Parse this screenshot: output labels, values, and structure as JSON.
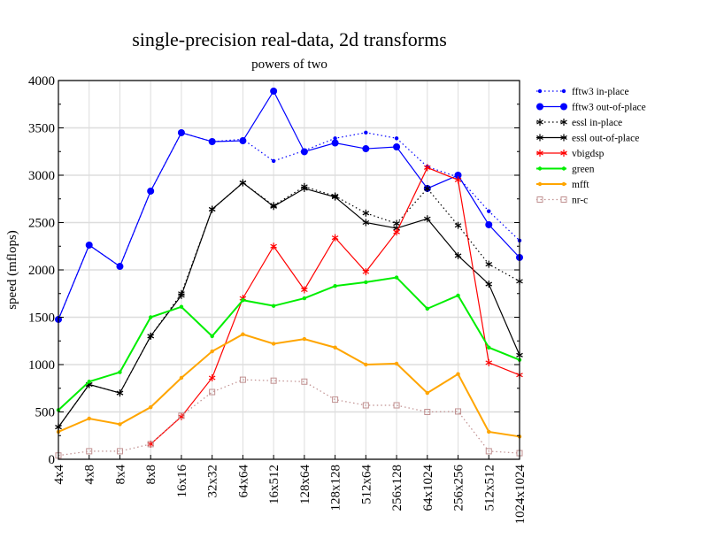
{
  "chart_data": {
    "type": "line",
    "title": "single-precision real-data, 2d transforms",
    "subtitle": "powers of two",
    "xlabel": "",
    "ylabel": "speed (mflops)",
    "ylim": [
      0,
      4000
    ],
    "yticks": [
      0,
      500,
      1000,
      1500,
      2000,
      2500,
      3000,
      3500,
      4000
    ],
    "grid": true,
    "legend_position": "right",
    "categories": [
      "4x4",
      "4x8",
      "8x4",
      "8x8",
      "16x16",
      "32x32",
      "64x64",
      "16x512",
      "128x64",
      "128x128",
      "512x64",
      "256x128",
      "64x1024",
      "256x256",
      "512x512",
      "1024x1024"
    ],
    "series": [
      {
        "name": "fftw3 in-place",
        "color": "#0000ff",
        "dash": "dotted",
        "marker": "dot-small",
        "values": [
          1477,
          2262,
          2037,
          2832,
          3449,
          3355,
          3380,
          3150,
          3260,
          3390,
          3450,
          3390,
          3090,
          2980,
          2620,
          2310
        ]
      },
      {
        "name": "fftw3 out-of-place",
        "color": "#0000ff",
        "dash": "solid",
        "marker": "dot-large",
        "values": [
          1477,
          2262,
          2037,
          2832,
          3449,
          3355,
          3364,
          3888,
          3248,
          3341,
          3280,
          3299,
          2860,
          3000,
          2477,
          2131
        ]
      },
      {
        "name": "essl in-place",
        "color": "#000000",
        "dash": "dotted",
        "marker": "star",
        "values": [
          340,
          790,
          700,
          1300,
          1750,
          2640,
          2920,
          2680,
          2880,
          2780,
          2600,
          2490,
          2860,
          2470,
          2060,
          1880
        ]
      },
      {
        "name": "essl out-of-place",
        "color": "#000000",
        "dash": "solid",
        "marker": "star",
        "values": [
          340,
          790,
          700,
          1300,
          1730,
          2640,
          2920,
          2670,
          2860,
          2770,
          2500,
          2440,
          2540,
          2150,
          1850,
          1100
        ]
      },
      {
        "name": "vbigdsp",
        "color": "#ff0000",
        "dash": "solid",
        "marker": "star",
        "values": [
          null,
          null,
          null,
          160,
          450,
          860,
          1700,
          2250,
          1790,
          2340,
          1980,
          2400,
          3080,
          2950,
          1020,
          890
        ]
      },
      {
        "name": "green",
        "color": "#00ee00",
        "dash": "solid",
        "marker": "dot-small",
        "width": 2,
        "values": [
          520,
          820,
          920,
          1500,
          1610,
          1300,
          1680,
          1620,
          1700,
          1830,
          1870,
          1920,
          1590,
          1730,
          1180,
          1050
        ]
      },
      {
        "name": "mfft",
        "color": "#ffa500",
        "dash": "solid",
        "marker": "dot-small",
        "width": 2,
        "values": [
          290,
          430,
          370,
          550,
          860,
          1140,
          1320,
          1220,
          1270,
          1180,
          1000,
          1010,
          700,
          900,
          290,
          240
        ]
      },
      {
        "name": "nr-c",
        "color": "#c09090",
        "dash": "dotted",
        "marker": "square",
        "values": [
          40,
          85,
          85,
          160,
          460,
          710,
          840,
          830,
          820,
          630,
          570,
          570,
          500,
          505,
          85,
          65
        ]
      }
    ]
  }
}
